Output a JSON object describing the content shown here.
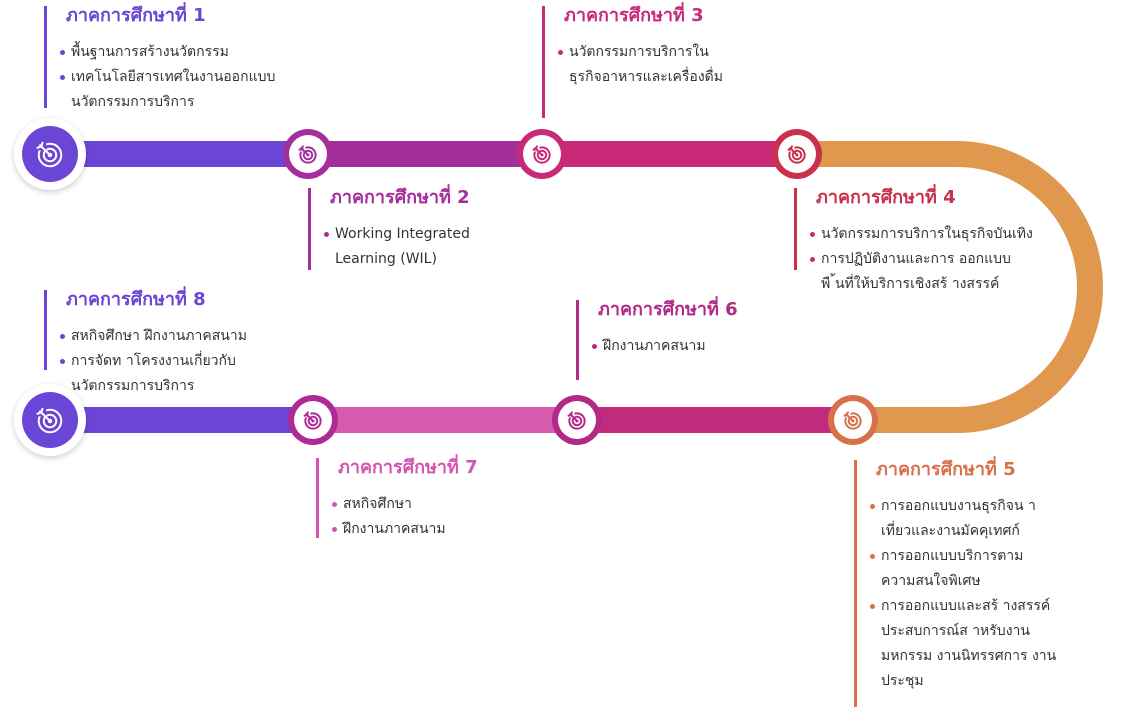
{
  "semesters": [
    {
      "title": "ภาคการศึกษาที่ 1",
      "items": [
        [
          "พื้นฐานการสร้างนวัตกรรม"
        ],
        [
          "เทคโนโลยีสารเทศในงานออกแบบ",
          "นวัตกรรมการบริการ"
        ]
      ]
    },
    {
      "title": "ภาคการศึกษาที่ 2",
      "items": [
        [
          "Working  Integrated",
          "Learning (WIL)"
        ]
      ]
    },
    {
      "title": "ภาคการศึกษาที่ 3",
      "items": [
        [
          "นวัตกรรมการบริการใน",
          "ธุรกิจอาหารและเครื่องดื่ม"
        ]
      ]
    },
    {
      "title": "ภาคการศึกษาที่ 4",
      "items": [
        [
          "นวัตกรรมการบริการในธุรกิจบันเทิง"
        ],
        [
          "การปฏิบัติงานและการ ออกแบบ",
          "พื ้นที่ให้บริการเชิงสร้ างสรรค์"
        ]
      ]
    },
    {
      "title": "ภาคการศึกษาที่ 5",
      "items": [
        [
          "การออกแบบงานธุรกิจน า",
          "เที่ยวและงานมัคคุเทศก์"
        ],
        [
          "การออกแบบบริการตาม",
          "ความสนใจพิเศษ"
        ],
        [
          "การออกแบบและสร้ างสรรค์",
          "ประสบการณ์ส าหรับงาน",
          "มหกรรม งานนิทรรศการ งาน",
          "ประชุม"
        ]
      ]
    },
    {
      "title": "ภาคการศึกษาที่ 6",
      "items": [
        [
          "ฝึกงานภาคสนาม"
        ]
      ]
    },
    {
      "title": "ภาคการศึกษาที่ 7",
      "items": [
        [
          "สหกิจศึกษา"
        ],
        [
          "ฝึกงานภาคสนาม"
        ]
      ]
    },
    {
      "title": "ภาคการศึกษาที่ 8",
      "items": [
        [
          "สหกิจศึกษา ฝึกงานภาคสนาม"
        ],
        [
          "การจัดท าโครงงานเกี่ยวกับ",
          "นวัตกรรมการบริการ"
        ]
      ]
    }
  ]
}
